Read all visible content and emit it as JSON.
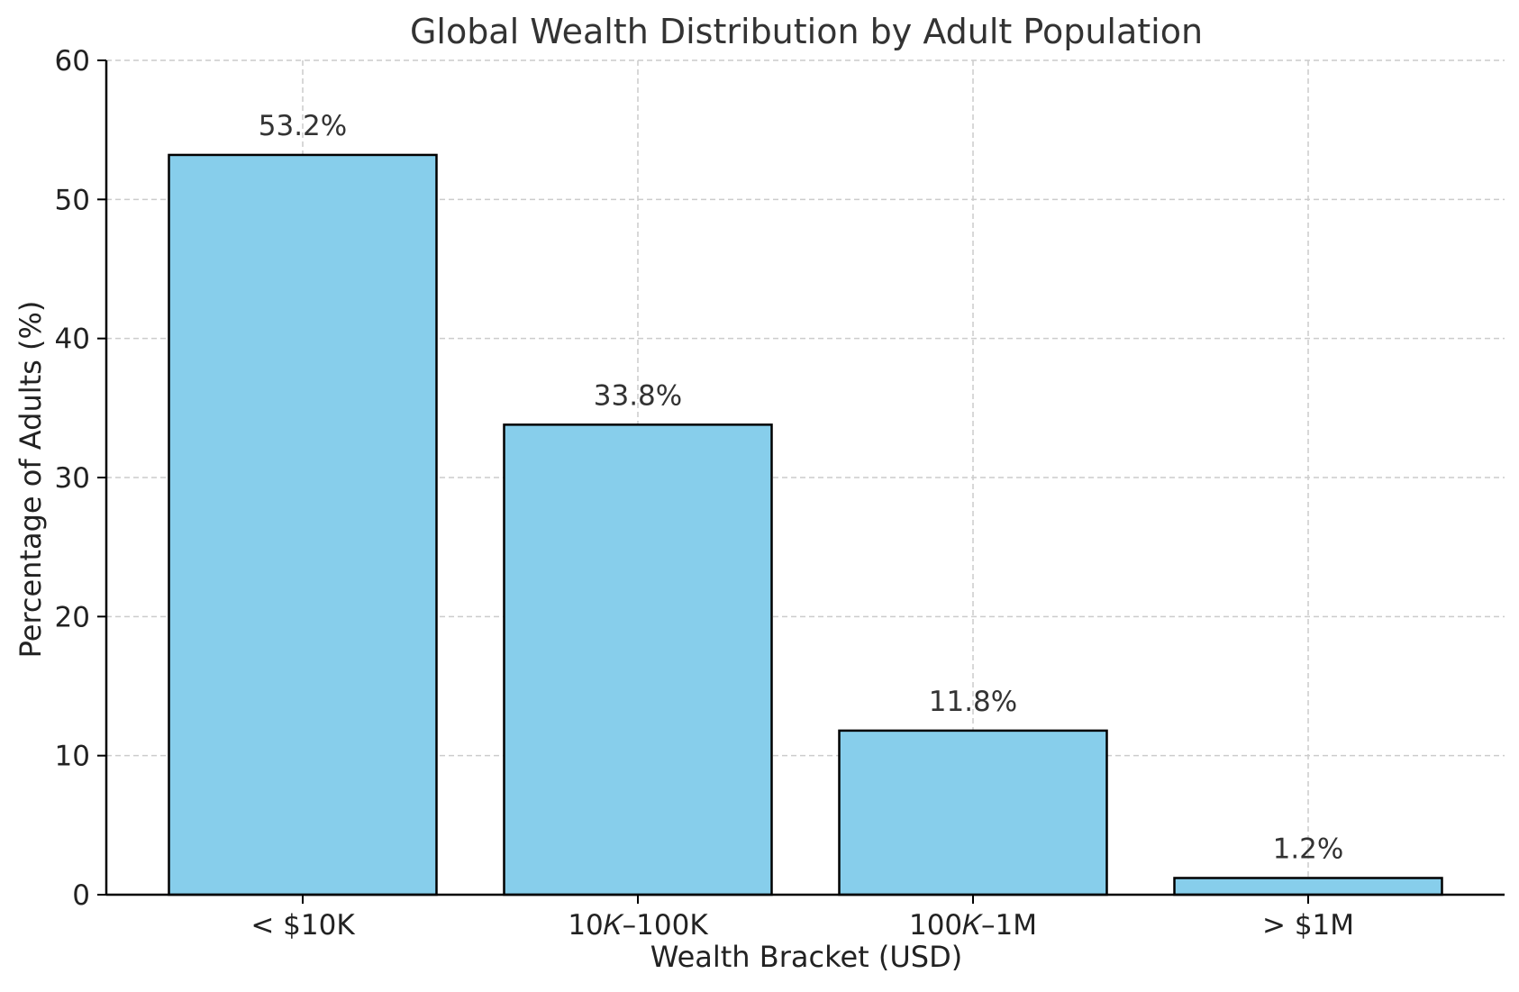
{
  "chart_data": {
    "type": "bar",
    "title": "Global Wealth Distribution by Adult Population",
    "xlabel": "Wealth Bracket (USD)",
    "ylabel": "Percentage of Adults (%)",
    "categories": [
      "< $10K",
      "$10K–$100K",
      "$100K–$1M",
      "> $1M"
    ],
    "category_display": [
      "< $10K",
      "10𝐾–100K",
      "100𝐾–1M",
      "> $1M"
    ],
    "values": [
      53.2,
      33.8,
      11.8,
      1.2
    ],
    "data_labels": [
      "53.2%",
      "33.8%",
      "11.8%",
      "1.2%"
    ],
    "ylim": [
      0,
      60
    ],
    "yticks": [
      0,
      10,
      20,
      30,
      40,
      50,
      60
    ],
    "ytick_labels": [
      "0",
      "10",
      "20",
      "30",
      "40",
      "50",
      "60"
    ],
    "grid": true,
    "bar_color": "#87CEEB",
    "edge_color": "#000000"
  }
}
